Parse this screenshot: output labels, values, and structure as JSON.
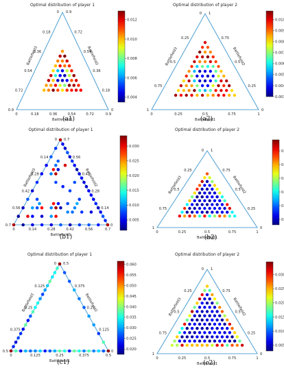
{
  "panels": [
    {
      "id": "a1",
      "title": "Optimal distribution of player 1",
      "caption": "(a1)",
      "chart_data": {
        "type": "scatter",
        "total": 0.9,
        "step": 0.045,
        "ticks": [
          "0.18",
          "0.36",
          "0.54",
          "0.72"
        ],
        "corner_labels": [
          "0",
          "0.9"
        ],
        "axis_labels": [
          "Battlefield1",
          "Battlefield2",
          "Battlefield3"
        ],
        "colorbar": {
          "min": 0.0035,
          "max": 0.0129,
          "ticks": [
            "0.004",
            "0.006",
            "0.008",
            "0.010",
            "0.012"
          ]
        },
        "pattern": "ring",
        "points": {
          "n": 20,
          "lo": 4,
          "hi": 16,
          "max_spread": 6
        }
      }
    },
    {
      "id": "a2",
      "title": "Optimal distribution of player 2",
      "caption": "(a2)",
      "chart_data": {
        "type": "scatter",
        "total": 1,
        "step": 0.05,
        "ticks": [
          "0.25",
          "0.5",
          "0.75"
        ],
        "corner_labels": [
          "0",
          "1"
        ],
        "axis_labels": [
          "Battlefield1",
          "Battlefield2",
          "Battlefield3"
        ],
        "colorbar": {
          "min": 0.003,
          "max": 0.0108,
          "ticks": [
            "0.003",
            "0.004",
            "0.005",
            "0.006",
            "0.007",
            "0.008",
            "0.009",
            "0.010"
          ]
        },
        "pattern": "ring",
        "points": {
          "n": 20,
          "lo": 3,
          "hi": 17,
          "max_spread": 7
        }
      }
    },
    {
      "id": "b1",
      "title": "Optimal distribution of player 1",
      "caption": "(b1)",
      "chart_data": {
        "type": "scatter",
        "total": 0.7,
        "step": 0.035,
        "ticks": [
          "0.14",
          "0.28",
          "0.42",
          "0.56"
        ],
        "corner_labels": [
          "0",
          "0.7"
        ],
        "axis_labels": [
          "Battlefield1",
          "Battlefield2",
          "Battlefield3"
        ],
        "colorbar": {
          "min": 0.0015,
          "max": 0.0335,
          "ticks": [
            "0.005",
            "0.010",
            "0.015",
            "0.020",
            "0.025",
            "0.030"
          ]
        },
        "pattern": "sparse",
        "points": {
          "n": 20,
          "lo": 0,
          "hi": 20,
          "max_spread": 20
        }
      }
    },
    {
      "id": "b2",
      "title": "Optimal distribution of player 2",
      "caption": "(b2)",
      "chart_data": {
        "type": "scatter",
        "total": 1,
        "step": 0.05,
        "ticks": [
          "0.25",
          "0.5",
          "0.75"
        ],
        "corner_labels": [
          "0",
          "1"
        ],
        "axis_labels": [
          "Battlefield1",
          "Battlefield2",
          "Battlefield3"
        ],
        "colorbar": {
          "min": 0.003,
          "max": 0.034,
          "ticks": [
            "0.005",
            "0.010",
            "0.015",
            "0.020",
            "0.025",
            "0.030"
          ]
        },
        "pattern": "hex",
        "points": {
          "n": 20,
          "lo": 3,
          "hi": 16,
          "max_spread": 6
        }
      }
    },
    {
      "id": "c1",
      "title": "Optimal distribution of player 1",
      "caption": "(c1)",
      "chart_data": {
        "type": "scatter",
        "total": 0.5,
        "step": 0.025,
        "ticks": [
          "0.125",
          "0.25",
          "0.375"
        ],
        "corner_labels": [
          "0",
          "0.5"
        ],
        "axis_labels": [
          "Battlefield1",
          "Battlefield2",
          "Battlefield3"
        ],
        "colorbar": {
          "min": 0.0175,
          "max": 0.0615,
          "ticks": [
            "0.020",
            "0.025",
            "0.030",
            "0.035",
            "0.040",
            "0.045",
            "0.050",
            "0.055",
            "0.060"
          ]
        },
        "pattern": "edge",
        "points": {
          "n": 20,
          "lo": 0,
          "hi": 20,
          "max_spread": 20
        }
      }
    },
    {
      "id": "c2",
      "title": "Optimal distribution of player 2",
      "caption": "(c2)",
      "chart_data": {
        "type": "scatter",
        "total": 1,
        "step": 0.05,
        "ticks": [
          "0.25",
          "0.5",
          "0.75"
        ],
        "corner_labels": [
          "0",
          "1"
        ],
        "axis_labels": [
          "Battlefield1",
          "Battlefield2",
          "Battlefield3"
        ],
        "colorbar": {
          "min": 0.003,
          "max": 0.0345,
          "ticks": [
            "0.005",
            "0.010",
            "0.015",
            "0.020",
            "0.025",
            "0.030"
          ]
        },
        "pattern": "hex",
        "points": {
          "n": 20,
          "lo": 2,
          "hi": 18,
          "max_spread": 8
        }
      }
    }
  ]
}
